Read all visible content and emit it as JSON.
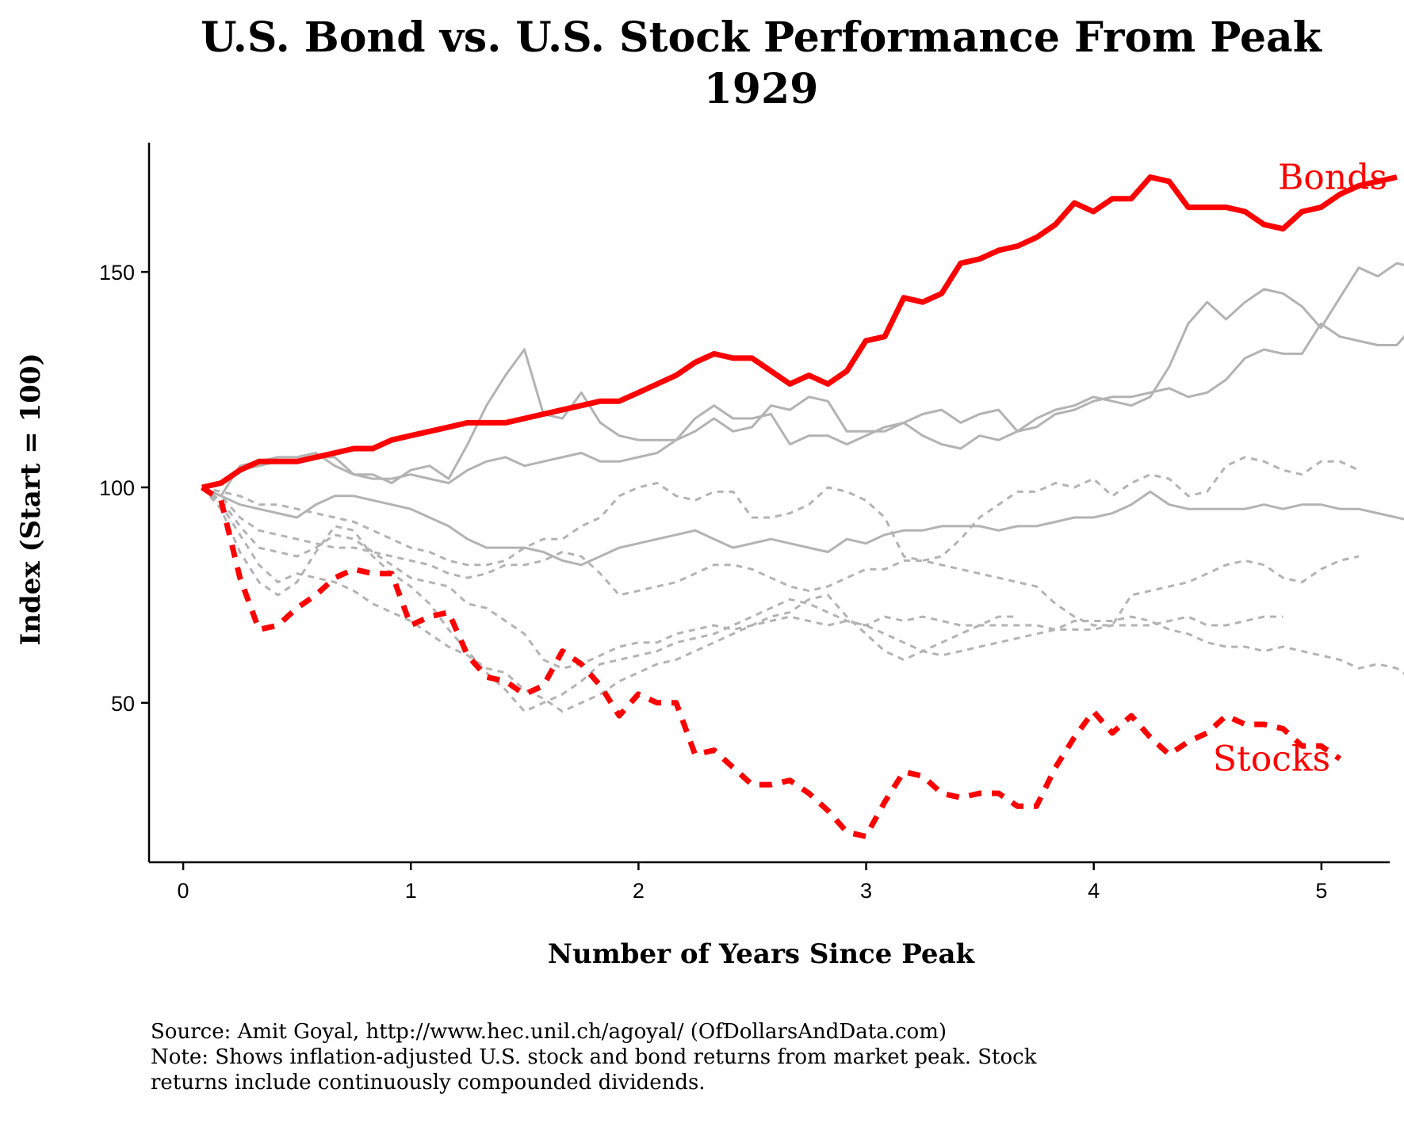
{
  "chart_data": {
    "type": "line",
    "title": [
      "U.S. Bond vs. U.S. Stock Performance From Peak",
      "1929"
    ],
    "xlabel": "Number of Years Since Peak",
    "ylabel": "Index (Start = 100)",
    "xlim": [
      -0.15,
      5.3
    ],
    "ylim": [
      13,
      180
    ],
    "x_ticks": [
      0,
      1,
      2,
      3,
      4,
      5
    ],
    "y_ticks": [
      50,
      100,
      150
    ],
    "grid": false,
    "colors": {
      "highlight": "#ff0000",
      "background_series": "#b3b3b3"
    },
    "highlight_series": [
      {
        "name": "Bonds",
        "kind": "bond",
        "dash": "solid",
        "x_start": 0.083,
        "x_step": 0.0833,
        "values": [
          100,
          101,
          104,
          106,
          106,
          106,
          107,
          108,
          109,
          109,
          111,
          112,
          113,
          114,
          115,
          115,
          115,
          116,
          117,
          118,
          119,
          120,
          120,
          122,
          124,
          126,
          129,
          131,
          130,
          130,
          127,
          124,
          126,
          124,
          127,
          134,
          135,
          144,
          143,
          145,
          152,
          153,
          155,
          156,
          158,
          161,
          166,
          164,
          167,
          167,
          172,
          171,
          165,
          165,
          165,
          164,
          161,
          160,
          164,
          165,
          168,
          170,
          171,
          172
        ]
      },
      {
        "name": "Stocks",
        "kind": "stock",
        "dash": "dashed",
        "x_start": 0.083,
        "x_step": 0.0833,
        "values": [
          100,
          97,
          79,
          67,
          68,
          72,
          75,
          79,
          81,
          80,
          80,
          68,
          70,
          71,
          61,
          56,
          55,
          52,
          54,
          62,
          59,
          54,
          47,
          52,
          50,
          50,
          38,
          39,
          35,
          31,
          31,
          32,
          29,
          25,
          20,
          19,
          27,
          34,
          33,
          29,
          28,
          29,
          29,
          26,
          26,
          35,
          42,
          48,
          43,
          47,
          42,
          38,
          41,
          43,
          47,
          45,
          45,
          44,
          40,
          40,
          37
        ]
      }
    ],
    "background_series": [
      {
        "kind": "bond",
        "dash": "solid",
        "x_start": 0.083,
        "x_step": 0.0833,
        "values": [
          100,
          98,
          105,
          106,
          107,
          107,
          108,
          105,
          103,
          103,
          101,
          104,
          105,
          102,
          110,
          119,
          126,
          132,
          117,
          116,
          122,
          115,
          112,
          111,
          111,
          111,
          113,
          116,
          113,
          114,
          119,
          118,
          121,
          120,
          113,
          113,
          113,
          115,
          112,
          110,
          109,
          112,
          111,
          113,
          116,
          118,
          119,
          121,
          120,
          119,
          121,
          128,
          138,
          143,
          139,
          143,
          146,
          145,
          142,
          137,
          144,
          151,
          149,
          152,
          151
        ]
      },
      {
        "kind": "bond",
        "dash": "solid",
        "x_start": 0.083,
        "x_step": 0.0833,
        "values": [
          100,
          101,
          104,
          105,
          106,
          106,
          107,
          107,
          103,
          102,
          102,
          103,
          102,
          101,
          104,
          106,
          107,
          105,
          106,
          107,
          108,
          106,
          106,
          107,
          108,
          111,
          116,
          119,
          116,
          116,
          117,
          110,
          112,
          112,
          110,
          112,
          114,
          115,
          117,
          118,
          115,
          117,
          118,
          113,
          114,
          117,
          118,
          120,
          121,
          121,
          122,
          123,
          121,
          122,
          125,
          130,
          132,
          131,
          131,
          138,
          135,
          134,
          133,
          133,
          138
        ]
      },
      {
        "kind": "bond",
        "dash": "solid",
        "x_start": 0.083,
        "x_step": 0.0833,
        "values": [
          100,
          98,
          96,
          95,
          94,
          93,
          96,
          98,
          98,
          97,
          96,
          95,
          93,
          91,
          88,
          86,
          86,
          86,
          85,
          83,
          82,
          84,
          86,
          87,
          88,
          89,
          90,
          88,
          86,
          87,
          88,
          87,
          86,
          85,
          88,
          87,
          89,
          90,
          90,
          91,
          91,
          91,
          90,
          91,
          91,
          92,
          93,
          93,
          94,
          96,
          99,
          96,
          95,
          95,
          95,
          95,
          96,
          95,
          96,
          96,
          95,
          95,
          94,
          93,
          92
        ]
      },
      {
        "kind": "stock",
        "dash": "dashed",
        "x_start": 0.083,
        "x_step": 0.0833,
        "values": [
          100,
          99,
          98,
          96,
          96,
          95,
          94,
          93,
          92,
          90,
          88,
          86,
          85,
          83,
          82,
          82,
          83,
          86,
          88,
          88,
          91,
          93,
          98,
          100,
          101,
          98,
          97,
          99,
          99,
          93,
          93,
          94,
          96,
          100,
          99,
          97,
          93,
          84,
          83,
          84,
          88,
          93,
          96,
          99,
          99,
          101,
          100,
          102,
          98,
          101,
          103,
          102,
          98,
          99,
          105,
          107,
          106,
          104,
          103,
          106,
          106,
          104
        ]
      },
      {
        "kind": "stock",
        "dash": "dashed",
        "x_start": 0.083,
        "x_step": 0.0833,
        "values": [
          100,
          98,
          93,
          90,
          89,
          88,
          87,
          86,
          86,
          85,
          84,
          83,
          82,
          80,
          79,
          80,
          82,
          82,
          83,
          85,
          84,
          80,
          75,
          76,
          77,
          78,
          80,
          82,
          82,
          81,
          79,
          77,
          76,
          77,
          79,
          81,
          81,
          83,
          83,
          82,
          81,
          80,
          79,
          78,
          77,
          73,
          70,
          68,
          68,
          75,
          76,
          77,
          78,
          80,
          82,
          83,
          82,
          79,
          78,
          81,
          83,
          84
        ]
      },
      {
        "kind": "stock",
        "dash": "dashed",
        "x_start": 0.083,
        "x_step": 0.0833,
        "values": [
          100,
          97,
          91,
          86,
          85,
          84,
          86,
          89,
          88,
          85,
          82,
          79,
          78,
          77,
          73,
          72,
          69,
          66,
          60,
          58,
          59,
          61,
          63,
          64,
          64,
          66,
          67,
          68,
          67,
          68,
          69,
          70,
          69,
          68,
          69,
          68,
          70,
          69,
          70,
          69,
          68,
          68,
          68,
          68,
          68,
          67,
          69,
          69,
          69,
          70,
          69,
          67,
          66,
          64,
          63,
          63,
          62,
          63,
          62,
          61,
          60,
          58,
          59,
          58,
          55
        ]
      },
      {
        "kind": "stock",
        "dash": "dashed",
        "x_start": 0.083,
        "x_step": 0.0833,
        "values": [
          100,
          95,
          85,
          78,
          75,
          78,
          85,
          91,
          90,
          84,
          80,
          77,
          73,
          67,
          62,
          57,
          53,
          48,
          50,
          52,
          55,
          59,
          60,
          61,
          62,
          64,
          65,
          66,
          68,
          70,
          72,
          74,
          73,
          71,
          69,
          68,
          66,
          64,
          62,
          61,
          62,
          63,
          64,
          65,
          66,
          67,
          67,
          67,
          68,
          68,
          68,
          69,
          70,
          68,
          68,
          69,
          70,
          70
        ]
      },
      {
        "kind": "stock",
        "dash": "dashed",
        "x_start": 0.083,
        "x_step": 0.0833,
        "values": [
          100,
          96,
          89,
          82,
          78,
          80,
          79,
          78,
          76,
          73,
          71,
          69,
          66,
          63,
          61,
          58,
          57,
          53,
          51,
          48,
          50,
          52,
          55,
          57,
          59,
          60,
          62,
          64,
          66,
          68,
          70,
          71,
          74,
          75,
          70,
          66,
          62,
          60,
          62,
          64,
          66,
          68,
          70,
          70
        ]
      }
    ]
  },
  "source_note": [
    "Source: Amit Goyal, http://www.hec.unil.ch/agoyal/ (OfDollarsAndData.com)",
    "Note: Shows inflation-adjusted U.S. stock and bond returns from market peak. Stock",
    "returns include continuously compounded dividends."
  ]
}
